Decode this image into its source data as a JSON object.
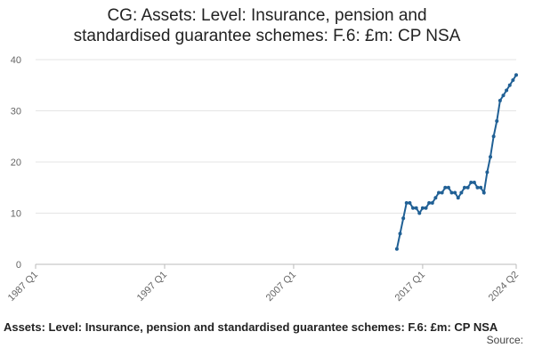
{
  "chart_data": {
    "type": "line",
    "title": "CG: Assets: Level: Insurance, pension and standardised guarantee schemes: F.6: £m: CP NSA",
    "source": "Source:",
    "x": [
      2015,
      2015.25,
      2015.5,
      2015.75,
      2016,
      2016.25,
      2016.5,
      2016.75,
      2017,
      2017.25,
      2017.5,
      2017.75,
      2018,
      2018.25,
      2018.5,
      2018.75,
      2019,
      2019.25,
      2019.5,
      2019.75,
      2020,
      2020.25,
      2020.5,
      2020.75,
      2021,
      2021.25,
      2021.5,
      2021.75,
      2022,
      2022.25,
      2022.5,
      2022.75,
      2023,
      2023.25,
      2023.5,
      2023.75,
      2024,
      2024.25
    ],
    "series": [
      {
        "color": "#206095",
        "values": [
          3,
          6,
          9,
          12,
          12,
          11,
          11,
          10,
          11,
          11,
          12,
          12,
          13,
          14,
          14,
          15,
          15,
          14,
          14,
          13,
          14,
          15,
          15,
          16,
          16,
          15,
          15,
          14,
          18,
          21,
          25,
          28,
          32,
          33,
          34,
          35,
          36,
          37
        ]
      }
    ],
    "xlim": [
      1987,
      2024.25
    ],
    "xticks": [
      {
        "value": 1987,
        "label": "1987 Q1"
      },
      {
        "value": 1997,
        "label": "1997 Q1"
      },
      {
        "value": 2007,
        "label": "2007 Q1"
      },
      {
        "value": 2017,
        "label": "2017 Q1"
      },
      {
        "value": 2024.25,
        "label": "2024 Q2"
      }
    ],
    "ylim": [
      0,
      40
    ],
    "yticks": [
      0,
      10,
      20,
      30,
      40
    ],
    "grid": true
  }
}
